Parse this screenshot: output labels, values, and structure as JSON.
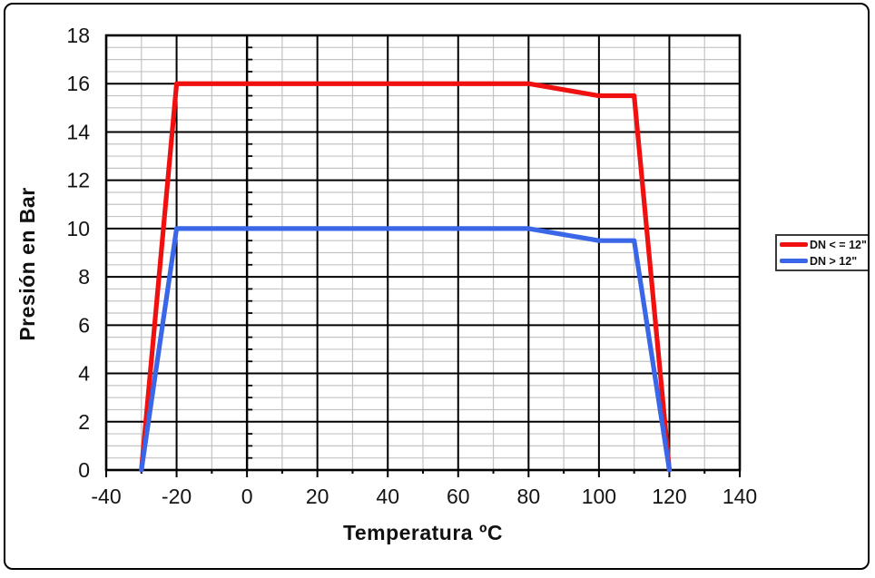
{
  "chart_data": {
    "type": "line",
    "title": "",
    "xlabel": "Temperatura ºC",
    "ylabel": "Presión en Bar",
    "xlim": [
      -40,
      140
    ],
    "ylim": [
      0,
      18
    ],
    "x_major_step": 20,
    "x_minor_step": 10,
    "y_major_step": 2,
    "y_minor_step": 0.5,
    "x_tick_labels": [
      "-40",
      "-20",
      "0",
      "20",
      "40",
      "60",
      "80",
      "100",
      "120",
      "140"
    ],
    "y_tick_labels": [
      "0",
      "2",
      "4",
      "6",
      "8",
      "10",
      "12",
      "14",
      "16",
      "18"
    ],
    "grid": true,
    "legend_position": "right",
    "series": [
      {
        "name": "DN < = 12\"",
        "color": "#f01010",
        "points": [
          [
            -30,
            0
          ],
          [
            -20,
            16
          ],
          [
            80,
            16
          ],
          [
            100,
            15.5
          ],
          [
            110,
            15.5
          ],
          [
            120,
            0
          ]
        ]
      },
      {
        "name": "DN > 12\"",
        "color": "#3a66e8",
        "points": [
          [
            -30,
            0
          ],
          [
            -20,
            10
          ],
          [
            80,
            10
          ],
          [
            100,
            9.5
          ],
          [
            110,
            9.5
          ],
          [
            120,
            0
          ]
        ]
      }
    ],
    "colors": {
      "major_grid": "#000000",
      "minor_grid": "#c3c3c3",
      "plot_border": "#000000",
      "axis_text": "#141414",
      "background": "#ffffff"
    }
  }
}
